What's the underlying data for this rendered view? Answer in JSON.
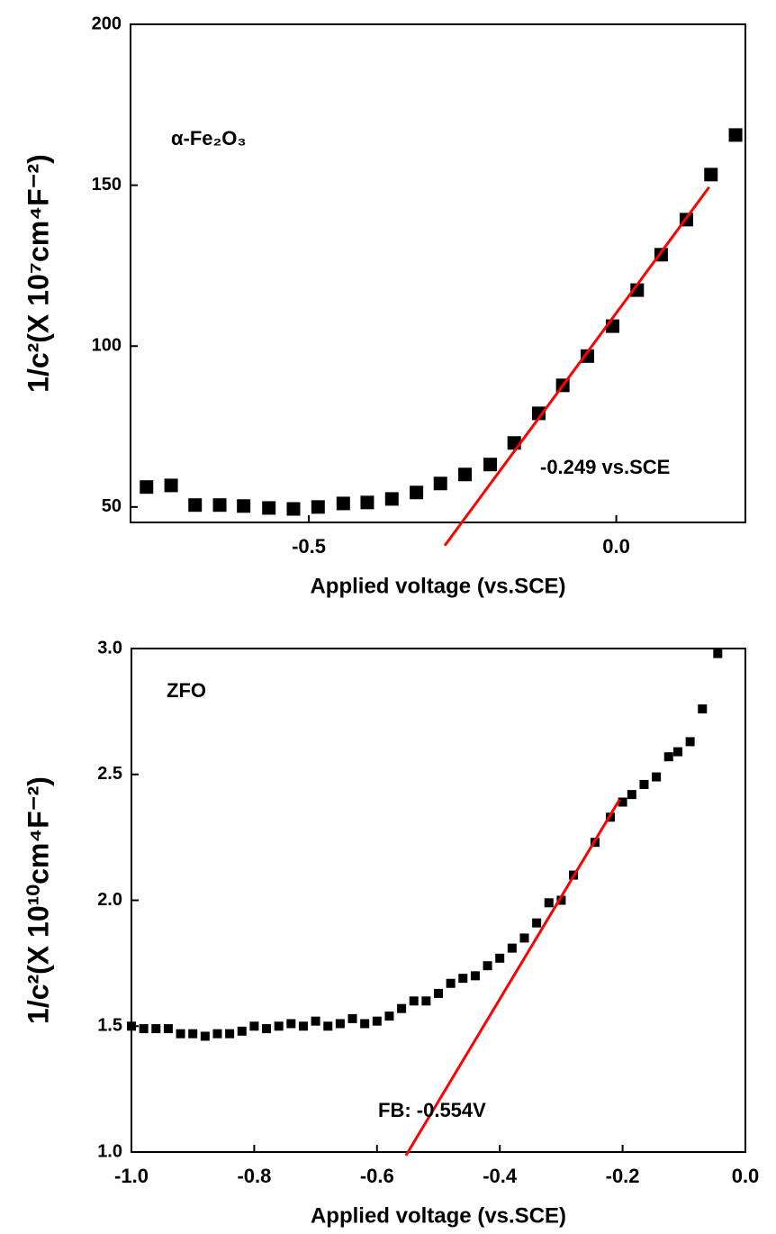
{
  "chart_data": [
    {
      "type": "scatter",
      "ylabel": "1/c²(X 10⁷cm⁴F⁻²)",
      "xlabel": "Applied voltage (vs.SCE)",
      "annotations": [
        "α-Fe₂O₃",
        "-0.249 vs.SCE"
      ],
      "xlim": [
        -0.79,
        0.21
      ],
      "ylim": [
        45.2,
        200
      ],
      "xticks": [
        -0.5,
        {
          "value": 0,
          "label": "0.0"
        }
      ],
      "yticks": [
        50,
        100,
        150,
        200
      ],
      "color": "#000000",
      "x": [
        -0.764,
        -0.724,
        -0.685,
        -0.645,
        -0.606,
        -0.565,
        -0.525,
        -0.485,
        -0.444,
        -0.405,
        -0.365,
        -0.325,
        -0.286,
        -0.246,
        -0.205,
        -0.166,
        -0.126,
        -0.087,
        -0.047,
        -0.006,
        0.034,
        0.073,
        0.114,
        0.154,
        0.194
      ],
      "values": [
        56.2,
        56.7,
        50.6,
        50.6,
        50.3,
        49.7,
        49.4,
        50,
        51.1,
        51.4,
        52.5,
        54.5,
        57.3,
        60.1,
        63.2,
        69.9,
        79.1,
        87.8,
        96.9,
        106.2,
        117.4,
        128.4,
        139.3,
        153.3,
        165.6
      ],
      "fit_line": {
        "x": [
          -0.279,
          0.151
        ],
        "y": [
          38,
          149.4
        ],
        "color": "#ff0000"
      }
    },
    {
      "type": "scatter",
      "ylabel": "1/c²(X 10¹⁰cm⁴F⁻²)",
      "xlabel": "Applied voltage (vs.SCE)",
      "annotations": [
        "ZFO",
        "FB: -0.554V"
      ],
      "xlim": [
        -1.0,
        0.0
      ],
      "ylim": [
        1.0,
        3.0
      ],
      "xticks": [
        {
          "value": -1,
          "label": "-1.0"
        },
        -0.8,
        -0.6,
        -0.4,
        -0.2,
        {
          "value": 0,
          "label": "0.0"
        }
      ],
      "yticks": [
        {
          "value": 1,
          "label": "1.0"
        },
        1.5,
        {
          "value": 2,
          "label": "2.0"
        },
        2.5,
        {
          "value": 3,
          "label": "3.0"
        }
      ],
      "color": "#000000",
      "x": [
        -1.0,
        -0.98,
        -0.96,
        -0.94,
        -0.92,
        -0.9,
        -0.88,
        -0.86,
        -0.84,
        -0.82,
        -0.8,
        -0.78,
        -0.76,
        -0.74,
        -0.72,
        -0.7,
        -0.68,
        -0.66,
        -0.64,
        -0.62,
        -0.6,
        -0.58,
        -0.56,
        -0.54,
        -0.52,
        -0.5,
        -0.48,
        -0.46,
        -0.44,
        -0.42,
        -0.4,
        -0.38,
        -0.36,
        -0.34,
        -0.32,
        -0.3,
        -0.28,
        -0.245,
        -0.22,
        -0.2,
        -0.185,
        -0.165,
        -0.145,
        -0.125,
        -0.11,
        -0.09,
        -0.07,
        -0.045
      ],
      "values": [
        1.5,
        1.49,
        1.49,
        1.49,
        1.47,
        1.47,
        1.46,
        1.47,
        1.47,
        1.48,
        1.5,
        1.49,
        1.5,
        1.51,
        1.5,
        1.52,
        1.5,
        1.51,
        1.53,
        1.51,
        1.52,
        1.54,
        1.57,
        1.6,
        1.6,
        1.63,
        1.67,
        1.69,
        1.7,
        1.74,
        1.77,
        1.81,
        1.85,
        1.91,
        1.99,
        2.0,
        2.1,
        2.23,
        2.33,
        2.39,
        2.42,
        2.46,
        2.49,
        2.57,
        2.59,
        2.63,
        2.76,
        2.98
      ],
      "fit_line": {
        "x": [
          -0.553,
          -0.205
        ],
        "y": [
          0.986,
          2.4
        ],
        "color": "#ff0000"
      }
    }
  ]
}
